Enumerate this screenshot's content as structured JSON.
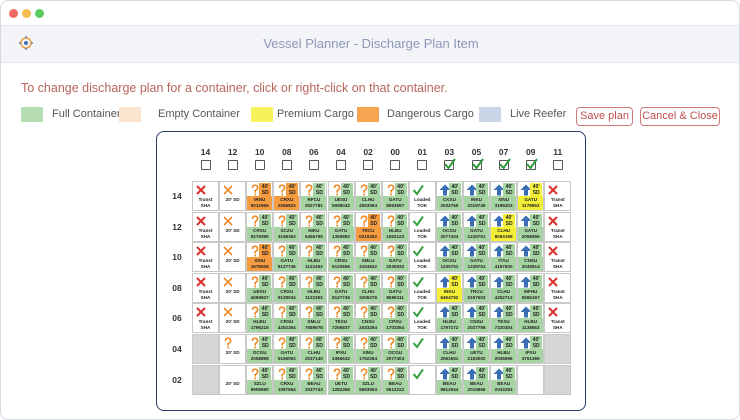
{
  "header": {
    "title": "Vessel Planner - Discharge Plan Item"
  },
  "instruction": "To change discharge plan for a container, click or right-click on that container.",
  "legend": [
    {
      "label": "Full Container",
      "color": "#b6dcb4"
    },
    {
      "label": "Empty Container",
      "color": "#fbe4cf"
    },
    {
      "label": "Premium Cargo",
      "color": "#f6f25a"
    },
    {
      "label": "Dangerous Cargo",
      "color": "#f5a54f"
    },
    {
      "label": "Live Reefer",
      "color": "#cbd5e8"
    }
  ],
  "buttons": {
    "save": "Save plan",
    "cancel": "Cancel & Close"
  },
  "grid": {
    "kind_colors": {
      "full": "#a6d4a2",
      "dangerous": "#f59c40",
      "premium": "#f3ee38",
      "transit": "#ffffff",
      "slot": "#ffffff",
      "loaded": "#ffffff",
      "blank": "#d6d6d6"
    },
    "columns": [
      {
        "label": "14",
        "checked": false
      },
      {
        "label": "12",
        "checked": false
      },
      {
        "label": "10",
        "checked": false
      },
      {
        "label": "08",
        "checked": false
      },
      {
        "label": "06",
        "checked": false
      },
      {
        "label": "04",
        "checked": false
      },
      {
        "label": "02",
        "checked": false
      },
      {
        "label": "00",
        "checked": false
      },
      {
        "label": "01",
        "checked": false
      },
      {
        "label": "03",
        "checked": true
      },
      {
        "label": "05",
        "checked": true
      },
      {
        "label": "07",
        "checked": true
      },
      {
        "label": "09",
        "checked": true
      },
      {
        "label": "11",
        "checked": false
      }
    ],
    "rows": [
      {
        "tier": "14",
        "cells": [
          {
            "icon": "x",
            "label": [
              "Transt",
              "SHA"
            ],
            "kind": "transit"
          },
          {
            "icon": "x-orange",
            "label": [
              "20' SD"
            ],
            "kind": "slot"
          },
          {
            "icon": "q",
            "tag": "40' SD",
            "label": [
              "IRNU",
              "9012965"
            ],
            "kind": "dangerous"
          },
          {
            "icon": "q",
            "tag": "40' SD",
            "label": [
              "CRXU",
              "2056923"
            ],
            "kind": "dangerous"
          },
          {
            "icon": "q",
            "tag": "40' SD",
            "label": [
              "RFCU",
              "2027781"
            ],
            "kind": "full"
          },
          {
            "icon": "q",
            "tag": "40' SD",
            "label": [
              "UESU",
              "5098042"
            ],
            "kind": "full"
          },
          {
            "icon": "q",
            "tag": "40' SD",
            "label": [
              "CLHU",
              "4003064"
            ],
            "kind": "full"
          },
          {
            "icon": "q",
            "tag": "40' SD",
            "label": [
              "GATU",
              "8593657"
            ],
            "kind": "full"
          },
          {
            "icon": "check",
            "label": [
              "Loaded",
              "TOK"
            ],
            "kind": "loaded"
          },
          {
            "icon": "up",
            "tag": "40' SD",
            "label": [
              "CKXU",
              "2032760"
            ],
            "kind": "full"
          },
          {
            "icon": "up",
            "tag": "40' SD",
            "label": [
              "INKU",
              "2019745"
            ],
            "kind": "full"
          },
          {
            "icon": "up",
            "tag": "40' SD",
            "label": [
              "XINU",
              "3199203"
            ],
            "kind": "full"
          },
          {
            "icon": "up",
            "tag": "40' SD",
            "label": [
              "GATU",
              "1178953"
            ],
            "kind": "premium"
          },
          {
            "icon": "x",
            "label": [
              "Transt",
              "SHA"
            ],
            "kind": "transit"
          }
        ]
      },
      {
        "tier": "12",
        "cells": [
          {
            "icon": "x",
            "label": [
              "Transt",
              "SHA"
            ],
            "kind": "transit"
          },
          {
            "icon": "x-orange",
            "label": [
              "20' SD"
            ],
            "kind": "slot"
          },
          {
            "icon": "q",
            "tag": "40' SD",
            "label": [
              "CRSU",
              "9279395"
            ],
            "kind": "full"
          },
          {
            "icon": "q",
            "tag": "40' SD",
            "label": [
              "SCZU",
              "3198363"
            ],
            "kind": "full"
          },
          {
            "icon": "q",
            "tag": "40' SD",
            "label": [
              "INKU",
              "6456795"
            ],
            "kind": "full"
          },
          {
            "icon": "q",
            "tag": "40' SD",
            "label": [
              "GATU",
              "1355892"
            ],
            "kind": "full"
          },
          {
            "icon": "q",
            "tag": "40' SD",
            "label": [
              "TRCU",
              "0219282"
            ],
            "kind": "dangerous"
          },
          {
            "icon": "q",
            "tag": "40' SD",
            "label": [
              "HLBU",
              "1552123"
            ],
            "kind": "full"
          },
          {
            "icon": "check",
            "label": [
              "Loaded",
              "TOK"
            ],
            "kind": "loaded"
          },
          {
            "icon": "up",
            "tag": "40' SD",
            "label": [
              "OCGU",
              "2077404"
            ],
            "kind": "full"
          },
          {
            "icon": "up",
            "tag": "40' SD",
            "label": [
              "GATU",
              "1235751"
            ],
            "kind": "full"
          },
          {
            "icon": "up",
            "tag": "40' SD",
            "label": [
              "CLHU",
              "8093199"
            ],
            "kind": "premium"
          },
          {
            "icon": "up",
            "tag": "40' SD",
            "label": [
              "GATU",
              "2056856"
            ],
            "kind": "full"
          },
          {
            "icon": "x",
            "label": [
              "Transt",
              "SHA"
            ],
            "kind": "transit"
          }
        ]
      },
      {
        "tier": "10",
        "cells": [
          {
            "icon": "x",
            "label": [
              "Transt",
              "SHA"
            ],
            "kind": "transit"
          },
          {
            "icon": "x-orange",
            "label": [
              "20' SD"
            ],
            "kind": "slot"
          },
          {
            "icon": "q",
            "tag": "40' SD",
            "label": [
              "XINU",
              "1675508"
            ],
            "kind": "dangerous"
          },
          {
            "icon": "q",
            "tag": "40' SD",
            "label": [
              "GATU",
              "8127746"
            ],
            "kind": "full"
          },
          {
            "icon": "q",
            "tag": "40' SD",
            "label": [
              "HLBU",
              "1122353"
            ],
            "kind": "full"
          },
          {
            "icon": "q",
            "tag": "40' SD",
            "label": [
              "CRSU",
              "9120656"
            ],
            "kind": "full"
          },
          {
            "icon": "q",
            "tag": "40' SD",
            "label": [
              "SMLU",
              "3104842"
            ],
            "kind": "full"
          },
          {
            "icon": "q",
            "tag": "40' SD",
            "label": [
              "GATU",
              "2030932"
            ],
            "kind": "full"
          },
          {
            "icon": "check",
            "label": [
              "Loaded",
              "TOK"
            ],
            "kind": "loaded"
          },
          {
            "icon": "up",
            "tag": "40' SD",
            "label": [
              "OCGU",
              "1235751"
            ],
            "kind": "full"
          },
          {
            "icon": "up",
            "tag": "40' SD",
            "label": [
              "GATU",
              "1235751"
            ],
            "kind": "full"
          },
          {
            "icon": "up",
            "tag": "40' SD",
            "label": [
              "ITAU",
              "4197830"
            ],
            "kind": "full"
          },
          {
            "icon": "up",
            "tag": "40' SD",
            "label": [
              "CNSU",
              "2045814"
            ],
            "kind": "full"
          },
          {
            "icon": "x",
            "label": [
              "Transt",
              "SHA"
            ],
            "kind": "transit"
          }
        ]
      },
      {
        "tier": "08",
        "cells": [
          {
            "icon": "x",
            "label": [
              "Transt",
              "SHA"
            ],
            "kind": "transit"
          },
          {
            "icon": "x-orange",
            "label": [
              "20' SD"
            ],
            "kind": "slot"
          },
          {
            "icon": "q",
            "tag": "40' SD",
            "label": [
              "UESU",
              "4069927"
            ],
            "kind": "full"
          },
          {
            "icon": "q",
            "tag": "40' SD",
            "label": [
              "CRXU",
              "9128034"
            ],
            "kind": "full"
          },
          {
            "icon": "q",
            "tag": "40' SD",
            "label": [
              "HLBU",
              "1122353"
            ],
            "kind": "full"
          },
          {
            "icon": "q",
            "tag": "40' SD",
            "label": [
              "GATU",
              "8127746"
            ],
            "kind": "full"
          },
          {
            "icon": "q",
            "tag": "40' SD",
            "label": [
              "CLHU",
              "3206276"
            ],
            "kind": "full"
          },
          {
            "icon": "q",
            "tag": "40' SD",
            "label": [
              "GATU",
              "8696111"
            ],
            "kind": "full"
          },
          {
            "icon": "check",
            "label": [
              "Loaded",
              "TOK"
            ],
            "kind": "loaded"
          },
          {
            "icon": "up",
            "tag": "40' SD",
            "label": [
              "INKU",
              "6464792"
            ],
            "kind": "premium"
          },
          {
            "icon": "up",
            "tag": "40' SD",
            "label": [
              "TRCU",
              "0197603"
            ],
            "kind": "full"
          },
          {
            "icon": "up",
            "tag": "40' SD",
            "label": [
              "CLHU",
              "4252713"
            ],
            "kind": "full"
          },
          {
            "icon": "up",
            "tag": "40' SD",
            "label": [
              "MFHU",
              "5565167"
            ],
            "kind": "full"
          },
          {
            "icon": "x",
            "label": [
              "Transt",
              "SHA"
            ],
            "kind": "transit"
          }
        ]
      },
      {
        "tier": "06",
        "cells": [
          {
            "icon": "x",
            "label": [
              "Transt",
              "SHA"
            ],
            "kind": "transit"
          },
          {
            "icon": "x-orange",
            "label": [
              "20' SD"
            ],
            "kind": "slot"
          },
          {
            "icon": "q",
            "tag": "40' SD",
            "label": [
              "HLBU",
              "1796218"
            ],
            "kind": "full"
          },
          {
            "icon": "q",
            "tag": "40' SD",
            "label": [
              "CRSU",
              "4252354"
            ],
            "kind": "full"
          },
          {
            "icon": "q",
            "tag": "40' SD",
            "label": [
              "SMLU",
              "7689978"
            ],
            "kind": "full"
          },
          {
            "icon": "q",
            "tag": "40' SD",
            "label": [
              "TEXU",
              "7256837"
            ],
            "kind": "full"
          },
          {
            "icon": "q",
            "tag": "40' SD",
            "label": [
              "CNSU",
              "2033264"
            ],
            "kind": "full"
          },
          {
            "icon": "q",
            "tag": "40' SD",
            "label": [
              "CPSU",
              "1703354"
            ],
            "kind": "full"
          },
          {
            "icon": "check",
            "label": [
              "Loaded",
              "TOK"
            ],
            "kind": "loaded"
          },
          {
            "icon": "up",
            "tag": "40' SD",
            "label": [
              "HLBU",
              "1797172"
            ],
            "kind": "full"
          },
          {
            "icon": "up",
            "tag": "40' SD",
            "label": [
              "CNSU",
              "2027798"
            ],
            "kind": "full"
          },
          {
            "icon": "up",
            "tag": "40' SD",
            "label": [
              "TEXU",
              "7220304"
            ],
            "kind": "full"
          },
          {
            "icon": "up",
            "tag": "40' SD",
            "label": [
              "HLBU",
              "1138653"
            ],
            "kind": "full"
          },
          {
            "icon": "x",
            "label": [
              "Transt",
              "SHA"
            ],
            "kind": "transit"
          }
        ]
      },
      {
        "tier": "04",
        "cells": [
          {
            "kind": "blank"
          },
          {
            "icon": "q",
            "label": [
              "20' SD"
            ],
            "kind": "slot"
          },
          {
            "icon": "q",
            "tag": "40' SD",
            "label": [
              "OCGU",
              "2058898"
            ],
            "kind": "full"
          },
          {
            "icon": "q",
            "tag": "40' SD",
            "label": [
              "GATU",
              "5166093"
            ],
            "kind": "full"
          },
          {
            "icon": "q",
            "tag": "40' SD",
            "label": [
              "CLHU",
              "2037140"
            ],
            "kind": "full"
          },
          {
            "icon": "q",
            "tag": "40' SD",
            "label": [
              "IPXU",
              "3366632"
            ],
            "kind": "full"
          },
          {
            "icon": "q",
            "tag": "40' SD",
            "label": [
              "XINU",
              "1792264"
            ],
            "kind": "full"
          },
          {
            "icon": "q",
            "tag": "40' SD",
            "label": [
              "OCGU",
              "2077404"
            ],
            "kind": "full"
          },
          {
            "icon": "check",
            "kind": "loaded"
          },
          {
            "icon": "up",
            "tag": "40' SD",
            "label": [
              "CLHU",
              "2061551"
            ],
            "kind": "full"
          },
          {
            "icon": "up",
            "tag": "40' SD",
            "label": [
              "UETU",
              "2153002"
            ],
            "kind": "full"
          },
          {
            "icon": "up",
            "tag": "40' SD",
            "label": [
              "HLBU",
              "2036696"
            ],
            "kind": "full"
          },
          {
            "icon": "up",
            "tag": "40' SD",
            "label": [
              "IPXU",
              "3761366"
            ],
            "kind": "full"
          },
          {
            "kind": "blank"
          }
        ]
      },
      {
        "tier": "02",
        "cells": [
          {
            "kind": "blank"
          },
          {
            "label": [
              "20' SD"
            ],
            "kind": "slot"
          },
          {
            "icon": "q",
            "tag": "40' SD",
            "label": [
              "SZLU",
              "9909690"
            ],
            "kind": "full"
          },
          {
            "icon": "q",
            "tag": "40' SD",
            "label": [
              "CRXU",
              "1087654"
            ],
            "kind": "full"
          },
          {
            "icon": "q",
            "tag": "40' SD",
            "label": [
              "BEAU",
              "2037743"
            ],
            "kind": "full"
          },
          {
            "icon": "q",
            "tag": "40' SD",
            "label": [
              "UETU",
              "1282366"
            ],
            "kind": "full"
          },
          {
            "icon": "q",
            "tag": "40' SD",
            "label": [
              "SZLU",
              "9693653"
            ],
            "kind": "full"
          },
          {
            "icon": "q",
            "tag": "40' SD",
            "label": [
              "BEAU",
              "9613222"
            ],
            "kind": "full"
          },
          {
            "icon": "check",
            "kind": "loaded"
          },
          {
            "icon": "up",
            "tag": "40' SD",
            "label": [
              "BEAU",
              "9812944"
            ],
            "kind": "full"
          },
          {
            "icon": "up",
            "tag": "40' SD",
            "label": [
              "BEAU",
              "2015866"
            ],
            "kind": "full"
          },
          {
            "icon": "up",
            "tag": "40' SD",
            "label": [
              "BEAU",
              "2043293"
            ],
            "kind": "full"
          },
          {
            "kind": "slot"
          },
          {
            "kind": "blank"
          }
        ]
      }
    ]
  }
}
